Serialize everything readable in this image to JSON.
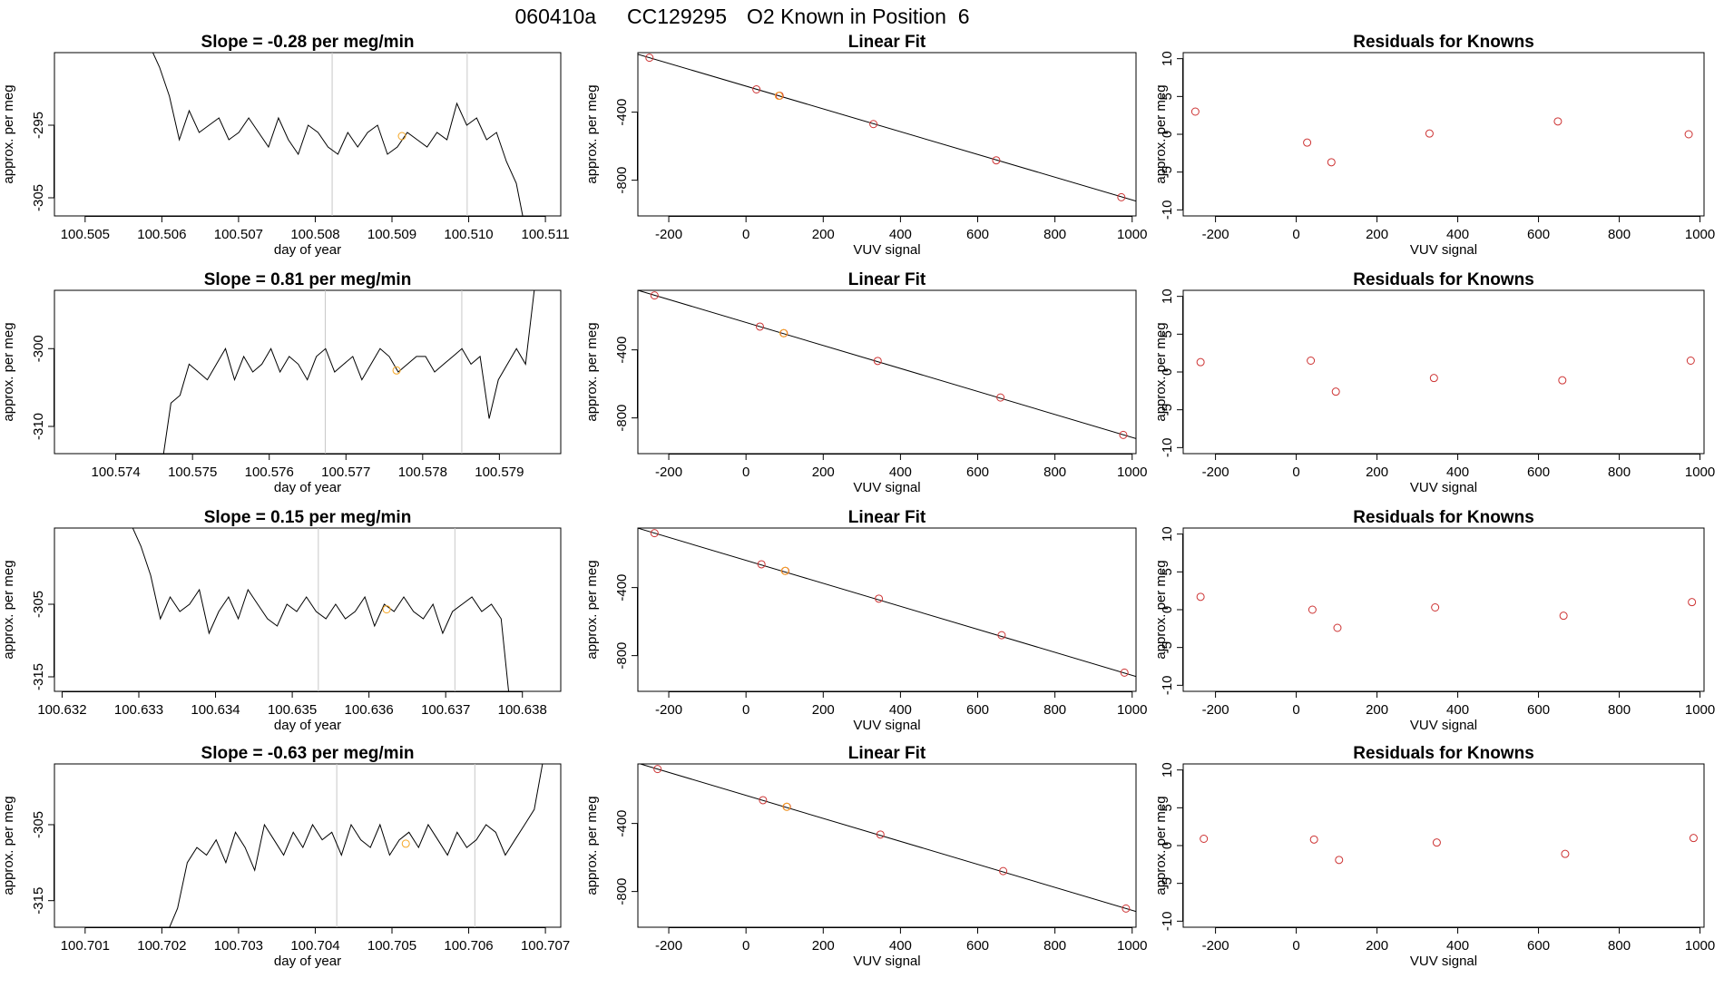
{
  "page": {
    "title_parts": [
      "060410a",
      "CC129295",
      "O2 Known in Position  6"
    ]
  },
  "style": {
    "line_color": "#000000",
    "point_color": "#cd3333",
    "highlight_color": "#f5a623",
    "vline_color": "#c8c8c8",
    "background": "#ffffff"
  },
  "chart_data": [
    {
      "type": "line",
      "row": 1,
      "col": 1,
      "title": "Slope =  -0.28  per meg/min",
      "xlabel": "day of year",
      "ylabel": "approx. per meg",
      "xlim": [
        100.5046,
        100.5112
      ],
      "ylim": [
        -307.5,
        -285.0
      ],
      "xticks": [
        "100.505",
        "100.506",
        "100.507",
        "100.508",
        "100.509",
        "100.510",
        "100.511"
      ],
      "yticks": [
        "-295",
        "-305"
      ],
      "vlines": [
        100.50822,
        100.50998
      ],
      "series": [
        {
          "x_start": 100.50584,
          "x_end": 100.51075,
          "values": [
            -284,
            -287,
            -291,
            -297,
            -293,
            -296,
            -295,
            -294,
            -297,
            -296,
            -294,
            -296,
            -298,
            -294,
            -297,
            -299,
            -295,
            -296,
            -298,
            -299,
            -296,
            -298,
            -296,
            -295,
            -299,
            -298,
            -296,
            -297,
            -298,
            -296,
            -297,
            -292,
            -295,
            -294,
            -297,
            -296,
            -300,
            -303,
            -310
          ]
        }
      ],
      "highlight": [
        {
          "x": 100.50913,
          "y": -296.5
        }
      ]
    },
    {
      "type": "scatter",
      "row": 1,
      "col": 2,
      "title": "Linear Fit",
      "xlabel": "VUV signal",
      "ylabel": "approx. per meg",
      "xlim": [
        -280,
        1010
      ],
      "ylim": [
        -1010,
        -50
      ],
      "xticks": [
        "-200",
        "0",
        "200",
        "400",
        "600",
        "800",
        "1000"
      ],
      "yticks": [
        "-400",
        "-800"
      ],
      "points": [
        [
          -250,
          -80
        ],
        [
          27,
          -266
        ],
        [
          87,
          -303
        ],
        [
          330,
          -470
        ],
        [
          648,
          -683
        ],
        [
          972,
          -900
        ]
      ],
      "highlight": [
        {
          "x": 85,
          "y": -304
        }
      ],
      "fit": {
        "slope": -0.6692,
        "intercept": -247
      }
    },
    {
      "type": "scatter",
      "row": 1,
      "col": 3,
      "title": "Residuals for Knowns",
      "xlabel": "VUV signal",
      "ylabel": "approx. per meg",
      "xlim": [
        -280,
        1010
      ],
      "ylim": [
        -10.8,
        10.8
      ],
      "xticks": [
        "-200",
        "0",
        "200",
        "400",
        "600",
        "800",
        "1000"
      ],
      "yticks": [
        "10",
        "5",
        "0",
        "-5",
        "-10"
      ],
      "points": [
        [
          -250,
          3.0
        ],
        [
          27,
          -1.1
        ],
        [
          87,
          -3.7
        ],
        [
          330,
          0.1
        ],
        [
          648,
          1.7
        ],
        [
          972,
          0.0
        ]
      ]
    },
    {
      "type": "line",
      "row": 2,
      "col": 1,
      "title": "Slope =  0.81  per meg/min",
      "xlabel": "day of year",
      "ylabel": "approx. per meg",
      "xlim": [
        100.5732,
        100.5798
      ],
      "ylim": [
        -313.5,
        -292.5
      ],
      "xticks": [
        "100.574",
        "100.575",
        "100.576",
        "100.577",
        "100.578",
        "100.579"
      ],
      "yticks": [
        "-300",
        "-310"
      ],
      "vlines": [
        100.57673,
        100.57851
      ],
      "series": [
        {
          "x_start": 100.5746,
          "x_end": 100.57946,
          "values": [
            -315,
            -307,
            -306,
            -302,
            -303,
            -304,
            -302,
            -300,
            -304,
            -301,
            -303,
            -302,
            -300,
            -303,
            -301,
            -302,
            -304,
            -301,
            -300,
            -303,
            -302,
            -301,
            -304,
            -302,
            -300,
            -301,
            -303,
            -302,
            -301,
            -301,
            -303,
            -302,
            -301,
            -300,
            -302,
            -301,
            -309,
            -304,
            -302,
            -300,
            -302,
            -292
          ]
        }
      ],
      "highlight": [
        {
          "x": 100.57766,
          "y": -302.8
        }
      ]
    },
    {
      "type": "scatter",
      "row": 2,
      "col": 2,
      "title": "Linear Fit",
      "xlabel": "VUV signal",
      "ylabel": "approx. per meg",
      "xlim": [
        -280,
        1010
      ],
      "ylim": [
        -1010,
        -50
      ],
      "xticks": [
        "-200",
        "0",
        "200",
        "400",
        "600",
        "800",
        "1000"
      ],
      "yticks": [
        "-400",
        "-800"
      ],
      "points": [
        [
          -237,
          -80
        ],
        [
          36,
          -263
        ],
        [
          98,
          -302
        ],
        [
          341,
          -465
        ],
        [
          659,
          -680
        ],
        [
          977,
          -900
        ]
      ],
      "highlight": [
        {
          "x": 97,
          "y": -302
        }
      ],
      "fit": {
        "slope": -0.6758,
        "intercept": -239
      }
    },
    {
      "type": "scatter",
      "row": 2,
      "col": 3,
      "title": "Residuals for Knowns",
      "xlabel": "VUV signal",
      "ylabel": "approx. per meg",
      "xlim": [
        -280,
        1010
      ],
      "ylim": [
        -10.8,
        10.8
      ],
      "xticks": [
        "-200",
        "0",
        "200",
        "400",
        "600",
        "800",
        "1000"
      ],
      "yticks": [
        "10",
        "5",
        "0",
        "-5",
        "-10"
      ],
      "points": [
        [
          -237,
          1.3
        ],
        [
          36,
          1.5
        ],
        [
          98,
          -2.6
        ],
        [
          341,
          -0.8
        ],
        [
          659,
          -1.1
        ],
        [
          977,
          1.5
        ]
      ]
    },
    {
      "type": "line",
      "row": 3,
      "col": 1,
      "title": "Slope =  0.15  per meg/min",
      "xlabel": "day of year",
      "ylabel": "approx. per meg",
      "xlim": [
        100.6319,
        100.6385
      ],
      "ylim": [
        -317.0,
        -294.5
      ],
      "xticks": [
        "100.632",
        "100.633",
        "100.634",
        "100.635",
        "100.636",
        "100.637",
        "100.638"
      ],
      "yticks": [
        "-305",
        "-315"
      ],
      "vlines": [
        100.63534,
        100.63712
      ],
      "series": [
        {
          "x_start": 100.6329,
          "x_end": 100.63785,
          "values": [
            -294,
            -297,
            -301,
            -307,
            -304,
            -306,
            -305,
            -303,
            -309,
            -306,
            -304,
            -307,
            -303,
            -305,
            -307,
            -308,
            -305,
            -306,
            -304,
            -306,
            -307,
            -305,
            -307,
            -306,
            -304,
            -308,
            -305,
            -306,
            -304,
            -306,
            -307,
            -305,
            -309,
            -306,
            -305,
            -304,
            -306,
            -305,
            -307,
            -320
          ]
        }
      ],
      "highlight": [
        {
          "x": 100.63623,
          "y": -305.7
        }
      ]
    },
    {
      "type": "scatter",
      "row": 3,
      "col": 2,
      "title": "Linear Fit",
      "xlabel": "VUV signal",
      "ylabel": "approx. per meg",
      "xlim": [
        -280,
        1010
      ],
      "ylim": [
        -1010,
        -50
      ],
      "xticks": [
        "-200",
        "0",
        "200",
        "400",
        "600",
        "800",
        "1000"
      ],
      "yticks": [
        "-400",
        "-800"
      ],
      "points": [
        [
          -237,
          -80
        ],
        [
          40,
          -263
        ],
        [
          102,
          -302
        ],
        [
          344,
          -465
        ],
        [
          662,
          -680
        ],
        [
          980,
          -900
        ]
      ],
      "highlight": [
        {
          "x": 101,
          "y": -302
        }
      ],
      "fit": {
        "slope": -0.6758,
        "intercept": -240
      }
    },
    {
      "type": "scatter",
      "row": 3,
      "col": 3,
      "title": "Residuals for Knowns",
      "xlabel": "VUV signal",
      "ylabel": "approx. per meg",
      "xlim": [
        -280,
        1010
      ],
      "ylim": [
        -10.8,
        10.8
      ],
      "xticks": [
        "-200",
        "0",
        "200",
        "400",
        "600",
        "800",
        "1000"
      ],
      "yticks": [
        "10",
        "5",
        "0",
        "-5",
        "-10"
      ],
      "points": [
        [
          -237,
          1.7
        ],
        [
          40,
          0.0
        ],
        [
          102,
          -2.4
        ],
        [
          344,
          0.3
        ],
        [
          662,
          -0.8
        ],
        [
          980,
          1.0
        ]
      ]
    },
    {
      "type": "line",
      "row": 4,
      "col": 1,
      "title": "Slope =  -0.63  per meg/min",
      "xlabel": "day of year",
      "ylabel": "approx. per meg",
      "xlim": [
        100.7006,
        100.7072
      ],
      "ylim": [
        -318.5,
        -297.0
      ],
      "xticks": [
        "100.701",
        "100.702",
        "100.703",
        "100.704",
        "100.705",
        "100.706",
        "100.707"
      ],
      "yticks": [
        "-305",
        "-315"
      ],
      "vlines": [
        100.70428,
        100.70608
      ],
      "series": [
        {
          "x_start": 100.70208,
          "x_end": 100.70698,
          "values": [
            -319,
            -316,
            -310,
            -308,
            -309,
            -307,
            -310,
            -306,
            -308,
            -311,
            -305,
            -307,
            -309,
            -306,
            -308,
            -305,
            -307,
            -306,
            -309,
            -305,
            -307,
            -308,
            -305,
            -309,
            -307,
            -306,
            -308,
            -305,
            -307,
            -309,
            -306,
            -308,
            -307,
            -305,
            -306,
            -309,
            -307,
            -305,
            -303,
            -296
          ]
        }
      ],
      "highlight": [
        {
          "x": 100.70518,
          "y": -307.5
        }
      ]
    },
    {
      "type": "scatter",
      "row": 4,
      "col": 2,
      "title": "Linear Fit",
      "xlabel": "VUV signal",
      "ylabel": "approx. per meg",
      "xlim": [
        -280,
        1010
      ],
      "ylim": [
        -1010,
        -50
      ],
      "xticks": [
        "-200",
        "0",
        "200",
        "400",
        "600",
        "800",
        "1000"
      ],
      "yticks": [
        "-400",
        "-800"
      ],
      "points": [
        [
          -229,
          -80
        ],
        [
          44,
          -263
        ],
        [
          106,
          -302
        ],
        [
          348,
          -465
        ],
        [
          666,
          -680
        ],
        [
          984,
          -900
        ]
      ],
      "highlight": [
        {
          "x": 105,
          "y": -302
        }
      ],
      "fit": {
        "slope": -0.6758,
        "intercept": -235
      }
    },
    {
      "type": "scatter",
      "row": 4,
      "col": 3,
      "title": "Residuals for Knowns",
      "xlabel": "VUV signal",
      "ylabel": "approx. per meg",
      "xlim": [
        -280,
        1010
      ],
      "ylim": [
        -10.8,
        10.8
      ],
      "xticks": [
        "-200",
        "0",
        "200",
        "400",
        "600",
        "800",
        "1000"
      ],
      "yticks": [
        "10",
        "5",
        "0",
        "-5",
        "-10"
      ],
      "points": [
        [
          -229,
          0.9
        ],
        [
          44,
          0.8
        ],
        [
          106,
          -1.9
        ],
        [
          348,
          0.4
        ],
        [
          666,
          -1.1
        ],
        [
          984,
          1.0
        ]
      ]
    }
  ]
}
